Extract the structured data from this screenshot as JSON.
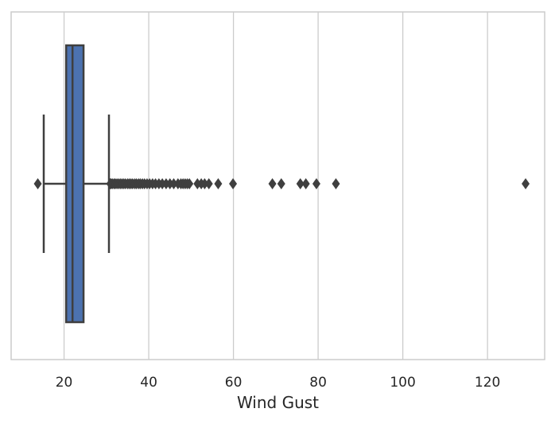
{
  "chart_data": {
    "type": "box",
    "orientation": "horizontal",
    "xlabel": "Wind Gust",
    "ylabel": "",
    "xlim": [
      7.5,
      133.5
    ],
    "xticks": [
      20,
      40,
      60,
      80,
      100,
      120
    ],
    "grid": "vertical",
    "colors": {
      "box_fill": "#4c72b0",
      "line": "#3f3f3f",
      "grid": "#cccccc",
      "frame": "#cccccc"
    },
    "box": {
      "whisker_low": 15.2,
      "q1": 20.5,
      "median": 22.0,
      "q3": 24.6,
      "whisker_high": 30.6
    },
    "outliers": [
      13.8,
      30.9,
      31.1,
      31.4,
      31.8,
      32.1,
      32.5,
      32.9,
      33.3,
      33.7,
      34.1,
      34.5,
      35.0,
      35.4,
      35.8,
      36.2,
      36.7,
      37.1,
      37.6,
      38.0,
      38.5,
      39.0,
      39.6,
      40.2,
      40.9,
      41.6,
      42.4,
      43.2,
      44.1,
      45.0,
      45.9,
      46.9,
      47.6,
      48.1,
      48.6,
      49.1,
      49.6,
      51.5,
      52.4,
      53.2,
      54.2,
      56.4,
      59.9,
      69.2,
      71.3,
      75.8,
      77.1,
      79.6,
      84.2,
      129.0
    ]
  }
}
